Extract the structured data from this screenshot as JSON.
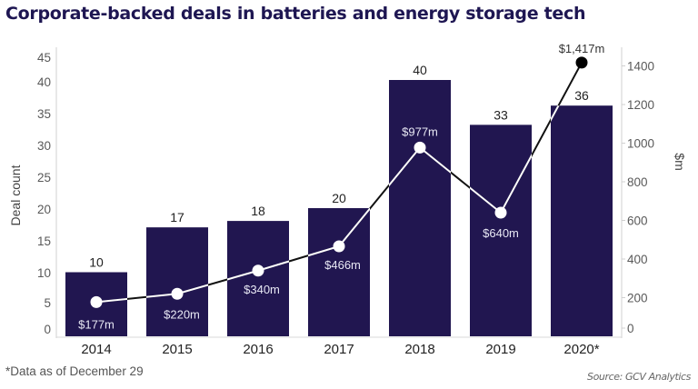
{
  "chart_data": {
    "type": "bar",
    "title": "Corporate-backed deals in batteries and energy storage tech",
    "categories": [
      "2014",
      "2015",
      "2016",
      "2017",
      "2018",
      "2019",
      "2020*"
    ],
    "series": [
      {
        "name": "Deal count",
        "type": "bar",
        "axis": "left",
        "values": [
          10,
          17,
          18,
          20,
          40,
          33,
          36
        ],
        "labels": [
          "10",
          "17",
          "18",
          "20",
          "40",
          "33",
          "36"
        ]
      },
      {
        "name": "$m",
        "type": "line",
        "axis": "right",
        "values": [
          177,
          220,
          340,
          466,
          977,
          640,
          1417
        ],
        "labels": [
          "$177m",
          "$220m",
          "$340m",
          "$466m",
          "$977m",
          "$640m",
          "$1,417m"
        ]
      }
    ],
    "ylabel": "Deal count",
    "ylim": [
      0,
      45
    ],
    "yticks": [
      "0",
      "5",
      "10",
      "15",
      "20",
      "25",
      "30",
      "35",
      "40",
      "45"
    ],
    "y2label": "$m",
    "y2lim": [
      0,
      1400
    ],
    "y2ticks": [
      "0",
      "200",
      "400",
      "600",
      "800",
      "1000",
      "1200",
      "1400"
    ],
    "xlabel": "",
    "grid": false,
    "legend": "none",
    "footnote": "*Data as of December 29",
    "source": "Source: GCV Analytics",
    "colors": {
      "bar": "#211650",
      "line_outside": "#111111",
      "line_inside": "#ffffff",
      "title": "#1e1652"
    }
  }
}
